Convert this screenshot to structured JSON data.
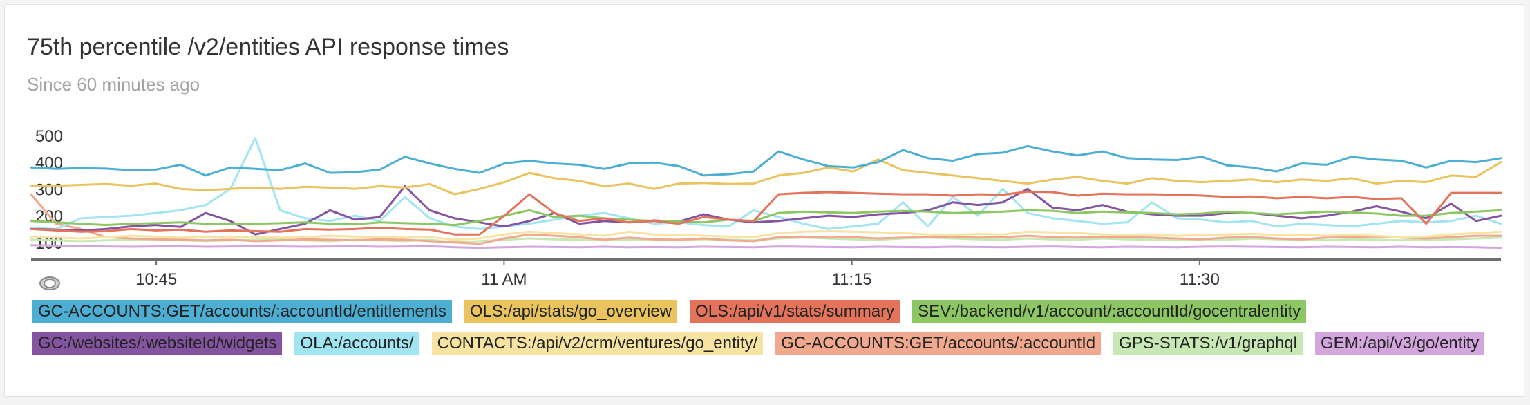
{
  "chart_data": {
    "type": "line",
    "title": "75th percentile /v2/entities API response times",
    "subtitle": "Since 60 minutes ago",
    "xlabel": "",
    "ylabel": "",
    "x_range_minutes": [
      -63.4,
      0
    ],
    "x_tick_labels": [
      "10:45",
      "11 AM",
      "11:15",
      "11:30"
    ],
    "x_tick_positions_minutes": [
      -58,
      -43,
      -28,
      -13
    ],
    "ylim": [
      35,
      515
    ],
    "y_ticks": [
      100,
      200,
      300,
      400,
      500
    ],
    "grid": false,
    "legend_position": "bottom",
    "series": [
      {
        "name": "GC-ACCOUNTS:GET/accounts/:accountId/entitlements",
        "color": "#4baed2",
        "values": [
          380,
          375,
          378,
          376,
          370,
          372,
          390,
          350,
          380,
          375,
          370,
          395,
          360,
          362,
          372,
          420,
          395,
          375,
          360,
          395,
          405,
          395,
          390,
          375,
          395,
          398,
          385,
          350,
          355,
          365,
          440,
          410,
          385,
          380,
          400,
          445,
          415,
          405,
          430,
          435,
          460,
          440,
          425,
          440,
          415,
          410,
          408,
          420,
          388,
          380,
          365,
          395,
          390,
          420,
          410,
          405,
          380,
          405,
          400,
          415
        ]
      },
      {
        "name": "OLS:/api/stats/go_overview",
        "color": "#e8c35e",
        "values": [
          310,
          312,
          315,
          318,
          312,
          320,
          300,
          295,
          300,
          305,
          300,
          308,
          305,
          300,
          310,
          305,
          318,
          280,
          300,
          325,
          360,
          340,
          330,
          310,
          320,
          300,
          320,
          322,
          318,
          320,
          350,
          360,
          380,
          365,
          410,
          370,
          360,
          350,
          340,
          330,
          320,
          335,
          345,
          330,
          320,
          340,
          330,
          325,
          330,
          335,
          325,
          335,
          330,
          340,
          320,
          330,
          325,
          350,
          345,
          400
        ]
      },
      {
        "name": "OLS:/api/v1/stats/summary",
        "color": "#e3735a",
        "values": [
          150,
          145,
          140,
          142,
          150,
          145,
          148,
          140,
          145,
          142,
          140,
          150,
          148,
          150,
          155,
          150,
          148,
          130,
          130,
          200,
          280,
          210,
          180,
          190,
          175,
          180,
          170,
          195,
          185,
          180,
          280,
          285,
          288,
          285,
          282,
          280,
          280,
          275,
          280,
          278,
          290,
          288,
          275,
          282,
          280,
          280,
          278,
          275,
          270,
          272,
          265,
          270,
          265,
          270,
          262,
          265,
          170,
          285,
          285,
          285
        ]
      },
      {
        "name": "SEV:/backend/v1/account/:accountId/gocentralentity",
        "color": "#8dc763",
        "values": [
          180,
          175,
          170,
          165,
          170,
          172,
          175,
          170,
          168,
          170,
          172,
          175,
          170,
          168,
          175,
          172,
          170,
          165,
          180,
          200,
          220,
          195,
          200,
          190,
          185,
          180,
          178,
          175,
          185,
          180,
          210,
          215,
          212,
          210,
          215,
          218,
          215,
          210,
          212,
          215,
          220,
          218,
          210,
          215,
          212,
          210,
          205,
          208,
          215,
          210,
          205,
          210,
          215,
          212,
          208,
          200,
          200,
          210,
          215,
          220
        ]
      },
      {
        "name": "GC:/websites/:websiteId/widgets",
        "color": "#8454a0",
        "values": [
          150,
          148,
          145,
          150,
          160,
          165,
          158,
          210,
          180,
          130,
          150,
          170,
          220,
          185,
          195,
          310,
          220,
          190,
          175,
          160,
          180,
          210,
          170,
          180,
          175,
          182,
          178,
          205,
          185,
          175,
          180,
          190,
          200,
          195,
          205,
          210,
          220,
          250,
          240,
          250,
          300,
          230,
          220,
          240,
          215,
          205,
          200,
          200,
          210,
          210,
          200,
          190,
          200,
          215,
          235,
          215,
          190,
          245,
          180,
          200
        ]
      },
      {
        "name": "OLA:/accounts/",
        "color": "#a1e4f2",
        "values": [
          155,
          150,
          190,
          195,
          200,
          210,
          220,
          240,
          300,
          490,
          220,
          190,
          180,
          200,
          180,
          270,
          190,
          160,
          150,
          160,
          170,
          185,
          200,
          210,
          190,
          170,
          175,
          165,
          160,
          220,
          195,
          170,
          150,
          160,
          170,
          250,
          160,
          270,
          200,
          300,
          210,
          190,
          180,
          170,
          175,
          250,
          190,
          185,
          175,
          180,
          160,
          170,
          165,
          160,
          170,
          180,
          175,
          180,
          200,
          170
        ]
      },
      {
        "name": "CONTACTS:/api/v2/crm/ventures/go_entity/",
        "color": "#f7e3a2",
        "values": [
          120,
          118,
          115,
          120,
          125,
          122,
          118,
          120,
          122,
          120,
          118,
          120,
          125,
          122,
          120,
          118,
          120,
          110,
          115,
          130,
          140,
          135,
          130,
          125,
          140,
          130,
          128,
          125,
          122,
          120,
          135,
          140,
          142,
          140,
          138,
          135,
          130,
          128,
          132,
          130,
          140,
          138,
          135,
          130,
          128,
          130,
          125,
          128,
          130,
          132,
          128,
          130,
          125,
          128,
          125,
          120,
          122,
          130,
          135,
          140
        ]
      },
      {
        "name": "GC-ACCOUNTS:GET/accounts/:accountId",
        "color": "#f0a98e",
        "values": [
          280,
          170,
          150,
          120,
          115,
          112,
          110,
          108,
          110,
          105,
          108,
          112,
          110,
          108,
          112,
          110,
          105,
          100,
          95,
          115,
          130,
          125,
          120,
          110,
          118,
          112,
          110,
          115,
          108,
          105,
          120,
          122,
          118,
          120,
          115,
          118,
          120,
          122,
          118,
          120,
          125,
          120,
          118,
          122,
          120,
          118,
          115,
          112,
          118,
          120,
          115,
          112,
          118,
          120,
          122,
          118,
          115,
          120,
          125,
          125
        ]
      },
      {
        "name": "GPS-STATS:/v1/graphql",
        "color": "#c7e8b4",
        "values": [
          110,
          108,
          105,
          108,
          110,
          112,
          108,
          105,
          108,
          110,
          112,
          108,
          105,
          110,
          108,
          105,
          110,
          100,
          105,
          110,
          115,
          112,
          110,
          108,
          112,
          110,
          108,
          112,
          110,
          108,
          115,
          118,
          115,
          112,
          110,
          115,
          118,
          115,
          112,
          110,
          115,
          112,
          110,
          115,
          112,
          110,
          108,
          112,
          110,
          115,
          112,
          110,
          108,
          112,
          110,
          108,
          110,
          112,
          115,
          118
        ]
      },
      {
        "name": "GEM:/api/v3/go/entity",
        "color": "#d4a6de",
        "values": [
          90,
          88,
          86,
          85,
          84,
          85,
          86,
          84,
          85,
          86,
          85,
          84,
          85,
          86,
          84,
          85,
          86,
          82,
          80,
          82,
          84,
          83,
          82,
          84,
          82,
          83,
          82,
          84,
          83,
          82,
          85,
          84,
          83,
          82,
          84,
          83,
          82,
          84,
          83,
          82,
          84,
          85,
          83,
          82,
          84,
          83,
          82,
          84,
          85,
          84,
          83,
          82,
          84,
          83,
          82,
          84,
          82,
          83,
          82,
          80
        ]
      }
    ]
  },
  "controls": {
    "toggle_icon": "eye-icon"
  }
}
